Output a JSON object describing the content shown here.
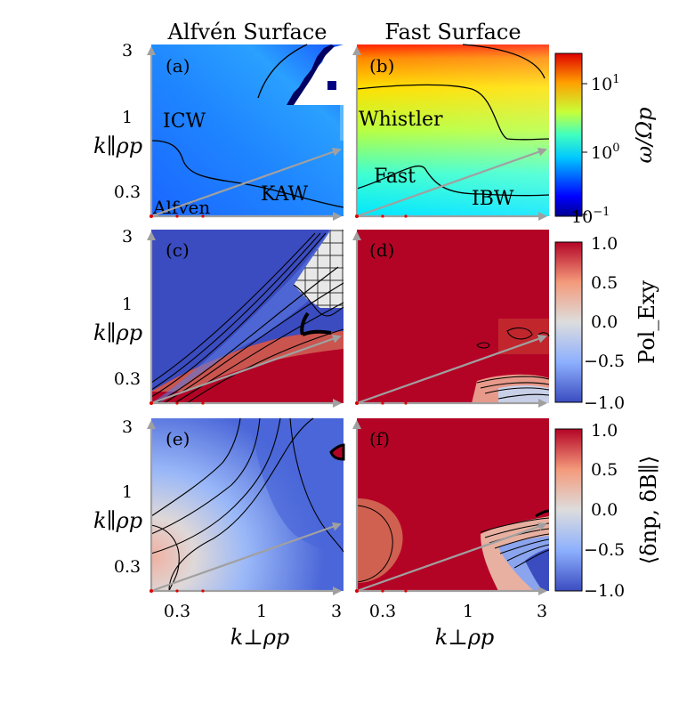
{
  "columns": [
    "Alfvén Surface",
    "Fast Surface"
  ],
  "xlabel": "k⊥ρp",
  "ylabel": "k∥ρp",
  "xticks": [
    0.3,
    1,
    3
  ],
  "yticks": [
    0.3,
    1,
    3
  ],
  "xlim": [
    0.1,
    3
  ],
  "ylim": [
    0.1,
    3
  ],
  "chart_data": [
    {
      "type": "heatmap",
      "panel": "(a)",
      "title": "Alfvén Surface",
      "colorbar": {
        "label": "ω/Ωp",
        "scale": "log",
        "range": [
          0.1,
          30
        ],
        "ticks": [
          "10^-1",
          "10^0",
          "10^1"
        ]
      },
      "annotations": [
        "ICW",
        "KAW",
        "Alfvén"
      ]
    },
    {
      "type": "heatmap",
      "panel": "(b)",
      "title": "Fast Surface",
      "colorbar": {
        "label": "ω/Ωp",
        "scale": "log",
        "range": [
          0.1,
          30
        ],
        "ticks": [
          "10^-1",
          "10^0",
          "10^1"
        ]
      },
      "annotations": [
        "Whistler",
        "Fast",
        "IBW"
      ]
    },
    {
      "type": "heatmap",
      "panel": "(c)",
      "colorbar": {
        "label": "Pol_Exy",
        "range": [
          -1.0,
          1.0
        ],
        "ticks": [
          "−1.0",
          "−0.5",
          "0.0",
          "0.5",
          "1.0"
        ]
      }
    },
    {
      "type": "heatmap",
      "panel": "(d)",
      "colorbar": {
        "label": "Pol_Exy",
        "range": [
          -1.0,
          1.0
        ],
        "ticks": [
          "−1.0",
          "−0.5",
          "0.0",
          "0.5",
          "1.0"
        ]
      }
    },
    {
      "type": "heatmap",
      "panel": "(e)",
      "colorbar": {
        "label": "⟨δnp, δB∥⟩",
        "range": [
          -1.0,
          1.0
        ],
        "ticks": [
          "−1.0",
          "−0.5",
          "0.0",
          "0.5",
          "1.0"
        ]
      }
    },
    {
      "type": "heatmap",
      "panel": "(f)",
      "colorbar": {
        "label": "⟨δnp, δB∥⟩",
        "range": [
          -1.0,
          1.0
        ],
        "ticks": [
          "−1.0",
          "−0.5",
          "0.0",
          "0.5",
          "1.0"
        ]
      }
    }
  ],
  "colors": {
    "arrow": "#a0a0a0",
    "tick_red": "#dd0000"
  }
}
